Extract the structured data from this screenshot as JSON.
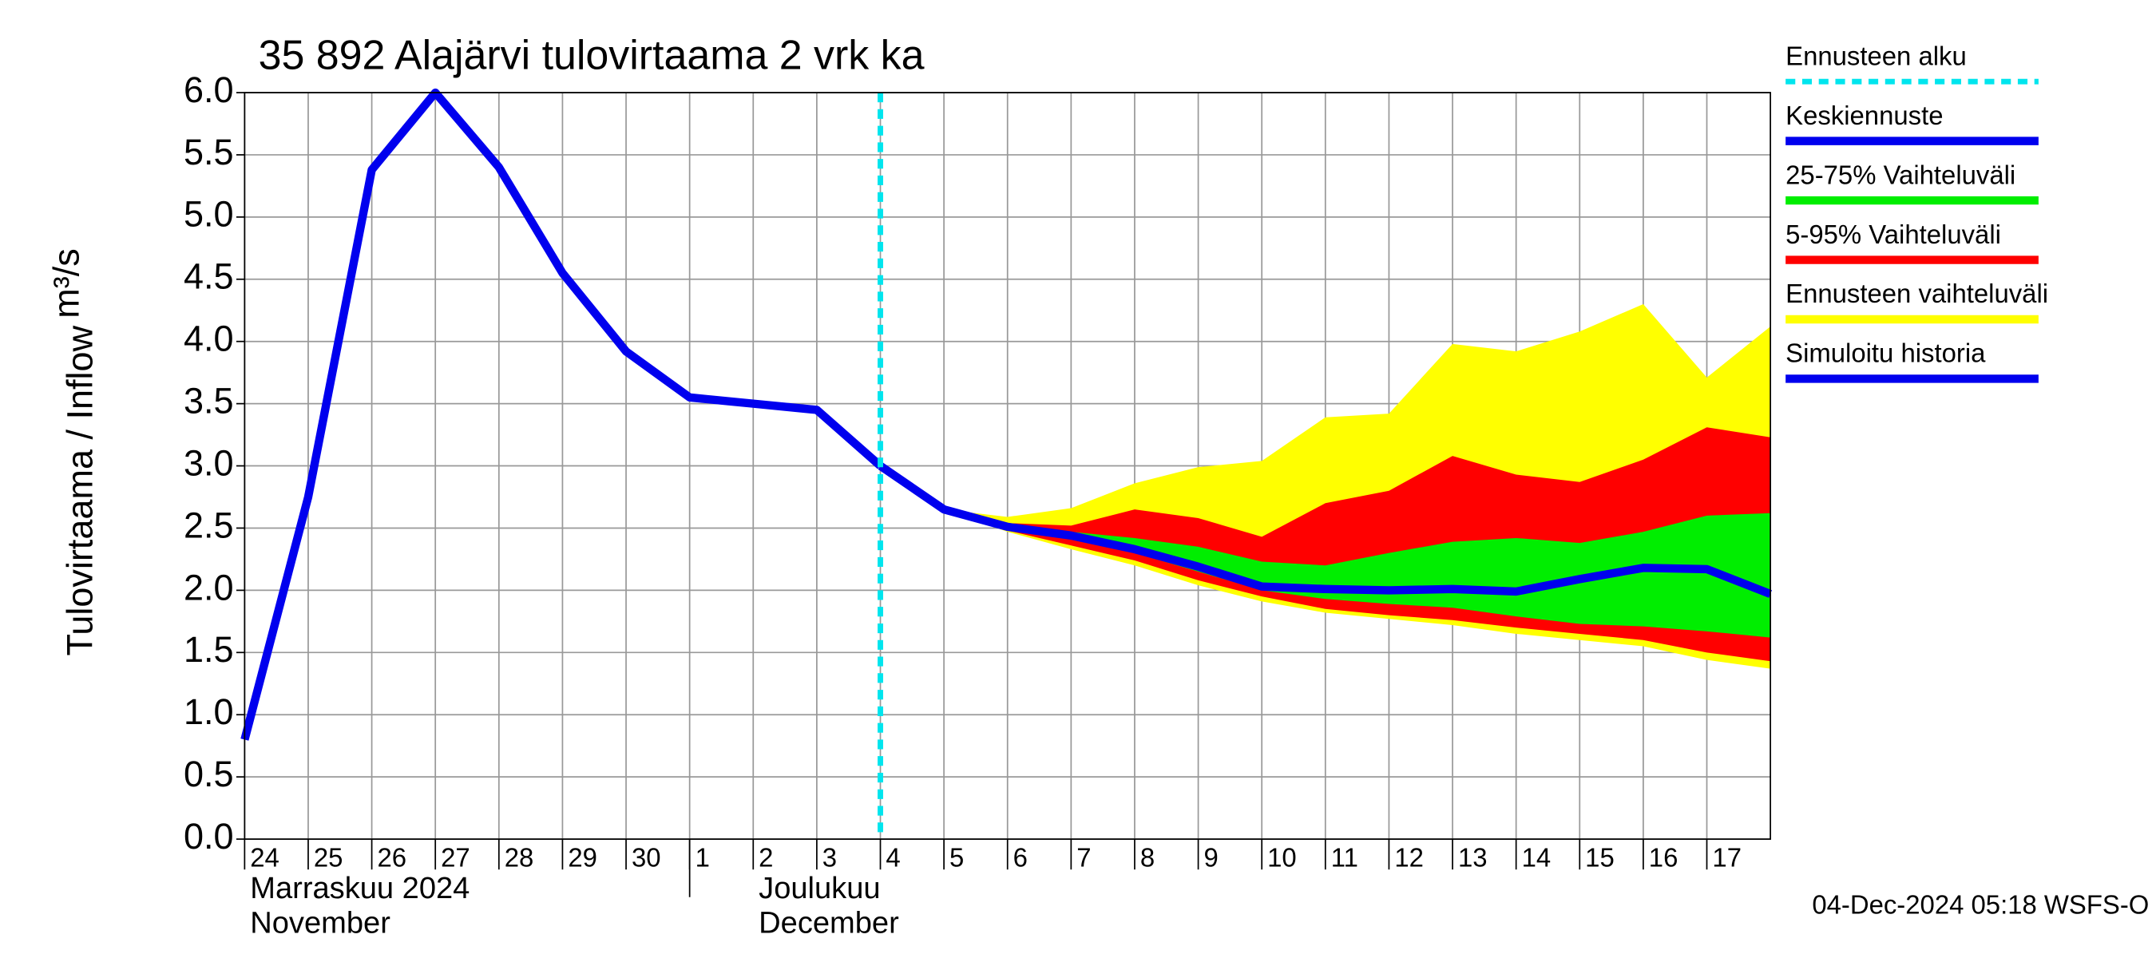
{
  "chart_data": {
    "type": "hydrograph",
    "title": "35 892 Alajärvi tulovirtaama 2 vrk ka",
    "y_label": "Tulovirtaama / Inflow",
    "y_unit": "m³/s",
    "footer": "04-Dec-2024 05:18 WSFS-O",
    "x": [
      "2024-11-24",
      "2024-11-25",
      "2024-11-26",
      "2024-11-27",
      "2024-11-28",
      "2024-11-29",
      "2024-11-30",
      "2024-12-01",
      "2024-12-02",
      "2024-12-03",
      "2024-12-04",
      "2024-12-05",
      "2024-12-06",
      "2024-12-07",
      "2024-12-08",
      "2024-12-09",
      "2024-12-10",
      "2024-12-11",
      "2024-12-12",
      "2024-12-13",
      "2024-12-14",
      "2024-12-15",
      "2024-12-16",
      "2024-12-17",
      "2024-12-18"
    ],
    "xlim": [
      "2024-11-24",
      "2024-12-18"
    ],
    "xticks": [
      {
        "value": "2024-11-24",
        "label": "24"
      },
      {
        "value": "2024-11-25",
        "label": "25"
      },
      {
        "value": "2024-11-26",
        "label": "26"
      },
      {
        "value": "2024-11-27",
        "label": "27"
      },
      {
        "value": "2024-11-28",
        "label": "28"
      },
      {
        "value": "2024-11-29",
        "label": "29"
      },
      {
        "value": "2024-11-30",
        "label": "30"
      },
      {
        "value": "2024-12-01",
        "label": "1"
      },
      {
        "value": "2024-12-02",
        "label": "2"
      },
      {
        "value": "2024-12-03",
        "label": "3"
      },
      {
        "value": "2024-12-04",
        "label": "4"
      },
      {
        "value": "2024-12-05",
        "label": "5"
      },
      {
        "value": "2024-12-06",
        "label": "6"
      },
      {
        "value": "2024-12-07",
        "label": "7"
      },
      {
        "value": "2024-12-08",
        "label": "8"
      },
      {
        "value": "2024-12-09",
        "label": "9"
      },
      {
        "value": "2024-12-10",
        "label": "10"
      },
      {
        "value": "2024-12-11",
        "label": "11"
      },
      {
        "value": "2024-12-12",
        "label": "12"
      },
      {
        "value": "2024-12-13",
        "label": "13"
      },
      {
        "value": "2024-12-14",
        "label": "14"
      },
      {
        "value": "2024-12-15",
        "label": "15"
      },
      {
        "value": "2024-12-16",
        "label": "16"
      },
      {
        "value": "2024-12-17",
        "label": "17"
      }
    ],
    "month_boundaries": [
      "2024-12-01"
    ],
    "month_labels": [
      {
        "value": "2024-11-24",
        "fi": "Marraskuu 2024",
        "en": "November"
      },
      {
        "value": "2024-12-02",
        "fi": "Joulukuu",
        "en": "December"
      }
    ],
    "ylim": [
      0,
      6
    ],
    "yticks": [
      {
        "value": 0,
        "label": "0.0"
      },
      0.5,
      {
        "value": 1,
        "label": "1.0"
      },
      1.5,
      {
        "value": 2,
        "label": "2.0"
      },
      2.5,
      {
        "value": 3,
        "label": "3.0"
      },
      3.5,
      {
        "value": 4,
        "label": "4.0"
      },
      4.5,
      {
        "value": 5,
        "label": "5.0"
      },
      5.5,
      {
        "value": 6,
        "label": "6.0"
      }
    ],
    "grid": true,
    "forecast_start": {
      "name": "Ennusteen alku",
      "color": "#00e5ee",
      "x": "2024-12-04"
    },
    "series": [
      {
        "name": "Keskiennuste",
        "color": "#0000ee",
        "values": [
          null,
          null,
          null,
          null,
          null,
          null,
          null,
          null,
          null,
          null,
          3.0,
          2.65,
          2.51,
          2.44,
          2.33,
          2.19,
          2.03,
          2.01,
          2.0,
          2.01,
          1.99,
          2.09,
          2.18,
          2.17,
          1.97
        ]
      },
      {
        "name": "25-75% Vaihteluväli",
        "color": "#00ee00",
        "upper": [
          null,
          null,
          null,
          null,
          null,
          null,
          null,
          null,
          null,
          null,
          3.0,
          2.65,
          2.52,
          2.47,
          2.42,
          2.35,
          2.23,
          2.2,
          2.3,
          2.39,
          2.42,
          2.38,
          2.47,
          2.6,
          2.62
        ],
        "lower": [
          null,
          null,
          null,
          null,
          null,
          null,
          null,
          null,
          null,
          null,
          3.0,
          2.65,
          2.5,
          2.42,
          2.3,
          2.15,
          2.0,
          1.93,
          1.89,
          1.86,
          1.79,
          1.73,
          1.71,
          1.67,
          1.62
        ]
      },
      {
        "name": "5-95% Vaihteluväli",
        "color": "#ff0000",
        "upper": [
          null,
          null,
          null,
          null,
          null,
          null,
          null,
          null,
          null,
          null,
          3.0,
          2.65,
          2.54,
          2.52,
          2.65,
          2.58,
          2.43,
          2.7,
          2.8,
          3.08,
          2.93,
          2.87,
          3.05,
          3.31,
          3.23
        ],
        "lower": [
          null,
          null,
          null,
          null,
          null,
          null,
          null,
          null,
          null,
          null,
          3.0,
          2.65,
          2.48,
          2.36,
          2.24,
          2.08,
          1.95,
          1.85,
          1.8,
          1.76,
          1.7,
          1.65,
          1.6,
          1.5,
          1.43
        ]
      },
      {
        "name": "Ennusteen vaihteluväli",
        "color": "#ffff00",
        "upper": [
          null,
          null,
          null,
          null,
          null,
          null,
          null,
          null,
          null,
          null,
          3.0,
          2.65,
          2.59,
          2.66,
          2.86,
          2.99,
          3.04,
          3.39,
          3.42,
          3.98,
          3.92,
          4.08,
          4.3,
          3.71,
          4.12
        ],
        "lower": [
          null,
          null,
          null,
          null,
          null,
          null,
          null,
          null,
          null,
          null,
          3.0,
          2.65,
          2.47,
          2.33,
          2.2,
          2.04,
          1.91,
          1.82,
          1.77,
          1.72,
          1.65,
          1.6,
          1.55,
          1.44,
          1.37
        ]
      },
      {
        "name": "Simuloitu historia",
        "color": "#0000ee",
        "values": [
          0.8,
          2.75,
          5.38,
          6.0,
          5.4,
          4.55,
          3.92,
          3.55,
          3.5,
          3.45,
          3.0,
          null,
          null,
          null,
          null,
          null,
          null,
          null,
          null,
          null,
          null,
          null,
          null,
          null,
          null
        ]
      }
    ]
  }
}
